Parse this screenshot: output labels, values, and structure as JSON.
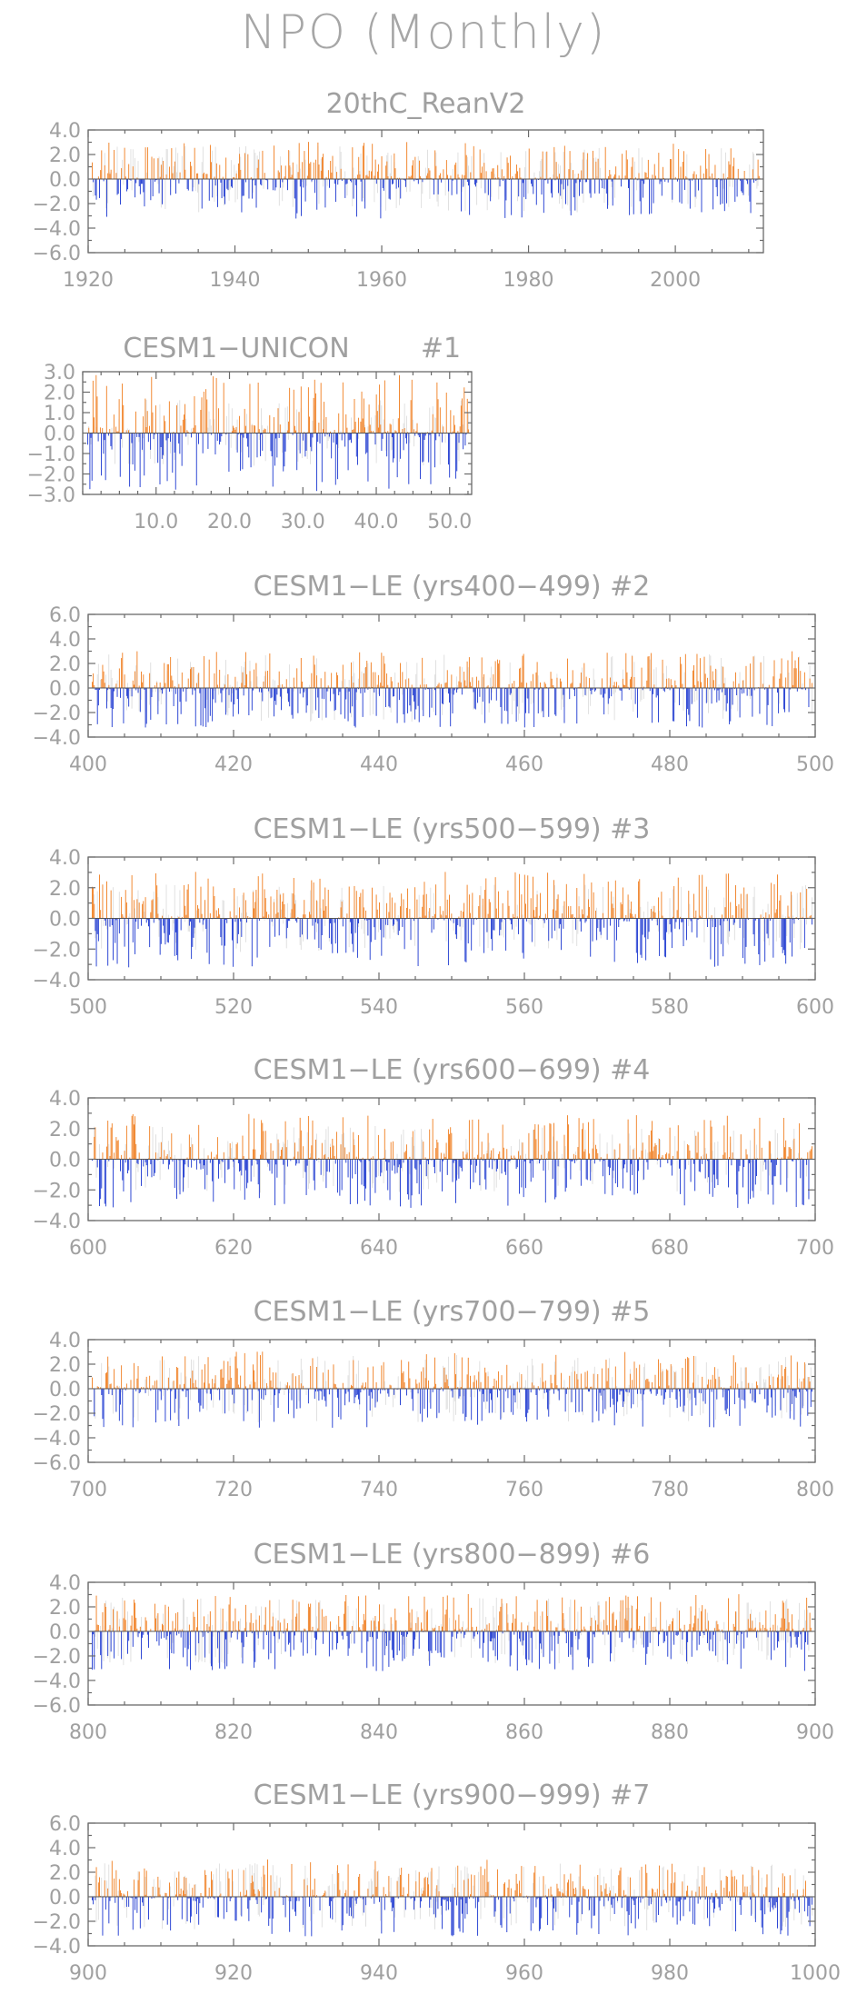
{
  "title": "NPO (Monthly)",
  "colors": {
    "positive": "#f07d1e",
    "negative": "#1a36d0",
    "faint": "#d9d9d9",
    "axis": "#6a6a6a",
    "text": "#a0a0a0"
  },
  "chart_data": [
    {
      "type": "bar",
      "title": "20thC_ReanV2",
      "xlim": [
        1920,
        2012
      ],
      "ylim": [
        -6,
        4
      ],
      "xticks": [
        1920,
        1940,
        1960,
        1980,
        2000
      ],
      "xtick_labels": [
        "1920",
        "1940",
        "1960",
        "1980",
        "2000"
      ],
      "yticks": [
        4,
        2,
        0,
        -2,
        -4,
        -6
      ],
      "ytick_labels": [
        "4.0",
        "2.0",
        "0.0",
        "−2.0",
        "−4.0",
        "−6.0"
      ]
    },
    {
      "type": "bar",
      "title": "CESM1−UNICON",
      "subtitle": "#1",
      "xlim": [
        0,
        53
      ],
      "ylim": [
        -3,
        3
      ],
      "xticks": [
        10,
        20,
        30,
        40,
        50
      ],
      "xtick_labels": [
        "10.0",
        "20.0",
        "30.0",
        "40.0",
        "50.0"
      ],
      "yticks": [
        3,
        2,
        1,
        0,
        -1,
        -2,
        -3
      ],
      "ytick_labels": [
        "3.0",
        "2.0",
        "1.0",
        "0.0",
        "−1.0",
        "−2.0",
        "−3.0"
      ]
    },
    {
      "type": "bar",
      "title": "CESM1−LE (yrs400−499) #2",
      "xlim": [
        400,
        500
      ],
      "ylim": [
        -4,
        6
      ],
      "xticks": [
        400,
        420,
        440,
        460,
        480,
        500
      ],
      "xtick_labels": [
        "400",
        "420",
        "440",
        "460",
        "480",
        "500"
      ],
      "yticks": [
        6,
        4,
        2,
        0,
        -2,
        -4
      ],
      "ytick_labels": [
        "6.0",
        "4.0",
        "2.0",
        "0.0",
        "−2.0",
        "−4.0"
      ]
    },
    {
      "type": "bar",
      "title": "CESM1−LE (yrs500−599) #3",
      "xlim": [
        500,
        600
      ],
      "ylim": [
        -4,
        4
      ],
      "xticks": [
        500,
        520,
        540,
        560,
        580,
        600
      ],
      "xtick_labels": [
        "500",
        "520",
        "540",
        "560",
        "580",
        "600"
      ],
      "yticks": [
        4,
        2,
        0,
        -2,
        -4
      ],
      "ytick_labels": [
        "4.0",
        "2.0",
        "0.0",
        "−2.0",
        "−4.0"
      ]
    },
    {
      "type": "bar",
      "title": "CESM1−LE (yrs600−699) #4",
      "xlim": [
        600,
        700
      ],
      "ylim": [
        -4,
        4
      ],
      "xticks": [
        600,
        620,
        640,
        660,
        680,
        700
      ],
      "xtick_labels": [
        "600",
        "620",
        "640",
        "660",
        "680",
        "700"
      ],
      "yticks": [
        4,
        2,
        0,
        -2,
        -4
      ],
      "ytick_labels": [
        "4.0",
        "2.0",
        "0.0",
        "−2.0",
        "−4.0"
      ]
    },
    {
      "type": "bar",
      "title": "CESM1−LE (yrs700−799) #5",
      "xlim": [
        700,
        800
      ],
      "ylim": [
        -6,
        4
      ],
      "xticks": [
        700,
        720,
        740,
        760,
        780,
        800
      ],
      "xtick_labels": [
        "700",
        "720",
        "740",
        "760",
        "780",
        "800"
      ],
      "yticks": [
        4,
        2,
        0,
        -2,
        -4,
        -6
      ],
      "ytick_labels": [
        "4.0",
        "2.0",
        "0.0",
        "−2.0",
        "−4.0",
        "−6.0"
      ]
    },
    {
      "type": "bar",
      "title": "CESM1−LE (yrs800−899) #6",
      "xlim": [
        800,
        900
      ],
      "ylim": [
        -6,
        4
      ],
      "xticks": [
        800,
        820,
        840,
        860,
        880,
        900
      ],
      "xtick_labels": [
        "800",
        "820",
        "840",
        "860",
        "880",
        "900"
      ],
      "yticks": [
        4,
        2,
        0,
        -2,
        -4,
        -6
      ],
      "ytick_labels": [
        "4.0",
        "2.0",
        "0.0",
        "−2.0",
        "−4.0",
        "−6.0"
      ]
    },
    {
      "type": "bar",
      "title": "CESM1−LE (yrs900−999) #7",
      "xlim": [
        900,
        1000
      ],
      "ylim": [
        -4,
        6
      ],
      "xticks": [
        900,
        920,
        940,
        960,
        980,
        1000
      ],
      "xtick_labels": [
        "900",
        "920",
        "940",
        "960",
        "980",
        "1000"
      ],
      "yticks": [
        6,
        4,
        2,
        0,
        -2,
        -4
      ],
      "ytick_labels": [
        "6.0",
        "4.0",
        "2.0",
        "0.0",
        "−2.0",
        "−4.0"
      ]
    }
  ]
}
